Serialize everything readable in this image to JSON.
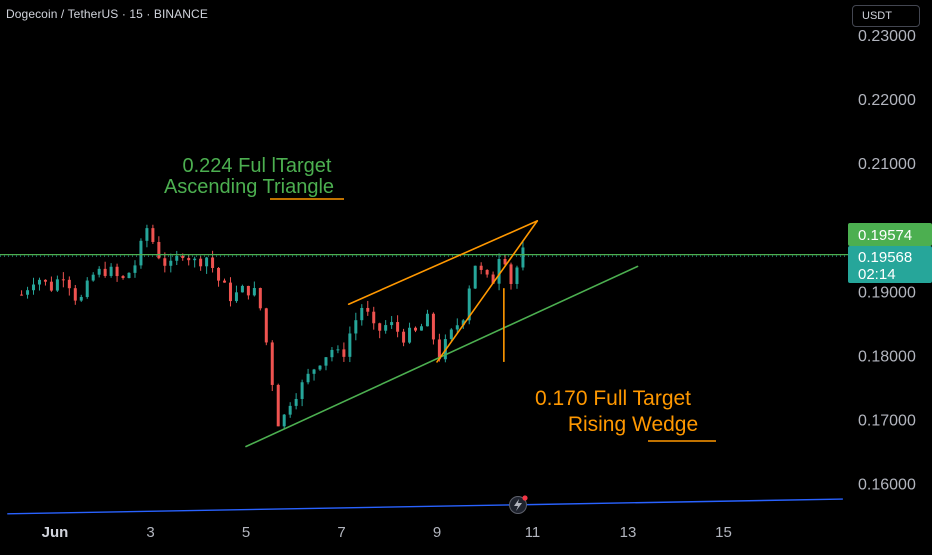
{
  "header": {
    "title": "Dogecoin / TetherUS · 15 · BINANCE",
    "currency": "USDT"
  },
  "colors": {
    "background": "#000000",
    "candle_up": "#26a69a",
    "candle_down": "#ef5350",
    "green_line": "#4caf50",
    "orange_line": "#ff9800",
    "blue_line": "#2962ff",
    "last_price_badge": "#26a69a",
    "level_badge": "#4caf50"
  },
  "chart_data": {
    "type": "candlestick",
    "symbol": "Dogecoin / TetherUS",
    "interval": "15",
    "exchange": "BINANCE",
    "y_axis": {
      "ticks": [
        "0.23000",
        "0.22000",
        "0.21000",
        "0.19000",
        "0.18000",
        "0.17000",
        "0.16000"
      ],
      "ylim": [
        0.1545,
        0.2318
      ]
    },
    "x_axis": {
      "ticks": [
        "Jun",
        "3",
        "5",
        "7",
        "9",
        "11",
        "13",
        "15"
      ],
      "bold_tick": "Jun",
      "day_range": [
        1.0,
        17.5
      ]
    },
    "price_path": [
      [
        0.3,
        0.1895
      ],
      [
        0.6,
        0.1925
      ],
      [
        0.9,
        0.1905
      ],
      [
        1.2,
        0.193
      ],
      [
        1.5,
        0.188
      ],
      [
        1.8,
        0.1925
      ],
      [
        2.1,
        0.1935
      ],
      [
        2.4,
        0.1915
      ],
      [
        2.7,
        0.1945
      ],
      [
        2.93,
        0.2
      ],
      [
        3.15,
        0.196
      ],
      [
        3.4,
        0.1935
      ],
      [
        3.7,
        0.1965
      ],
      [
        3.9,
        0.1945
      ],
      [
        4.2,
        0.1955
      ],
      [
        4.4,
        0.192
      ],
      [
        4.7,
        0.189
      ],
      [
        5.0,
        0.1905
      ],
      [
        5.25,
        0.1895
      ],
      [
        5.45,
        0.181
      ],
      [
        5.7,
        0.1685
      ],
      [
        5.95,
        0.1735
      ],
      [
        6.2,
        0.1755
      ],
      [
        6.5,
        0.179
      ],
      [
        6.8,
        0.181
      ],
      [
        7.0,
        0.1795
      ],
      [
        7.2,
        0.184
      ],
      [
        7.45,
        0.188
      ],
      [
        7.7,
        0.1835
      ],
      [
        8.0,
        0.185
      ],
      [
        8.3,
        0.183
      ],
      [
        8.55,
        0.1835
      ],
      [
        8.8,
        0.1855
      ],
      [
        9.05,
        0.18
      ],
      [
        9.35,
        0.184
      ],
      [
        9.6,
        0.187
      ],
      [
        9.75,
        0.195
      ],
      [
        9.95,
        0.1925
      ],
      [
        10.15,
        0.191
      ],
      [
        10.35,
        0.1975
      ],
      [
        10.55,
        0.1915
      ],
      [
        10.8,
        0.196
      ]
    ],
    "horizontal_line": {
      "price": 0.19574,
      "label": "0.19574"
    },
    "last_price": {
      "price": 0.19568,
      "label": "0.19568",
      "countdown": "02:14"
    },
    "blue_line": {
      "from": [
        0.0,
        0.1553
      ],
      "to": [
        17.5,
        0.1576
      ]
    },
    "annotations": {
      "green_title_line1": "0.224 Ful lTarget",
      "green_title_line2": "Ascending Triangle",
      "orange_title_line1": "0.170  Full Target",
      "orange_title_line2": "Rising Wedge"
    },
    "trendlines": {
      "green_support": {
        "from": [
          5.0,
          0.1658
        ],
        "to": [
          13.2,
          0.1939
        ]
      },
      "orange_upper": {
        "from": [
          7.15,
          0.188
        ],
        "to": [
          11.1,
          0.201
        ]
      },
      "orange_lower": {
        "from": [
          9.0,
          0.179
        ],
        "to": [
          11.1,
          0.201
        ]
      },
      "orange_vertical": {
        "x": 10.4,
        "from_price": 0.1905,
        "to_price": 0.179
      }
    }
  }
}
